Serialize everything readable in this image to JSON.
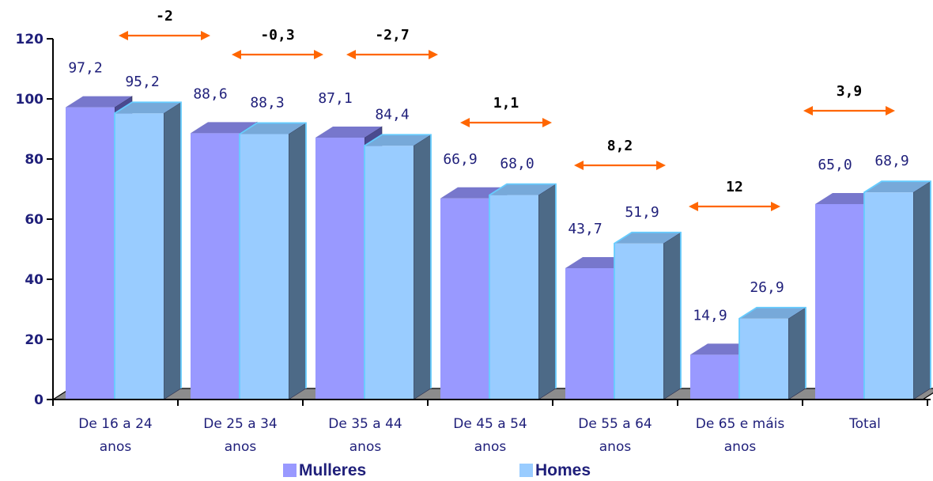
{
  "chart_data": {
    "type": "bar",
    "categories": [
      [
        "De 16 a 24",
        "anos"
      ],
      [
        "De 25 a 34",
        "anos"
      ],
      [
        "De 35 a 44",
        "anos"
      ],
      [
        "De 45 a 54",
        "anos"
      ],
      [
        "De 55 a 64",
        "anos"
      ],
      [
        "De 65 e máis",
        "anos"
      ],
      [
        "Total"
      ]
    ],
    "series": [
      {
        "name": "Mulleres",
        "values": [
          97.2,
          88.6,
          87.1,
          66.9,
          43.7,
          14.9,
          65.0
        ],
        "labels": [
          "97,2",
          "88,6",
          "87,1",
          "66,9",
          "43,7",
          "14,9",
          "65,0"
        ],
        "color": "#9999ff"
      },
      {
        "name": "Homes",
        "values": [
          95.2,
          88.3,
          84.4,
          68.0,
          51.9,
          26.9,
          68.9
        ],
        "labels": [
          "95,2",
          "88,3",
          "84,4",
          "68,0",
          "51,9",
          "26,9",
          "68,9"
        ],
        "color": "#99ccff"
      }
    ],
    "differences": [
      "-2",
      "-0,3",
      "-2,7",
      "1,1",
      "8,2",
      "12",
      "3,9"
    ],
    "ylim": [
      0,
      120
    ],
    "yticks": [
      0,
      20,
      40,
      60,
      80,
      100,
      120
    ],
    "arrow_color": "#ff6600",
    "legend_position": "bottom-center",
    "style": "3d-columns"
  }
}
